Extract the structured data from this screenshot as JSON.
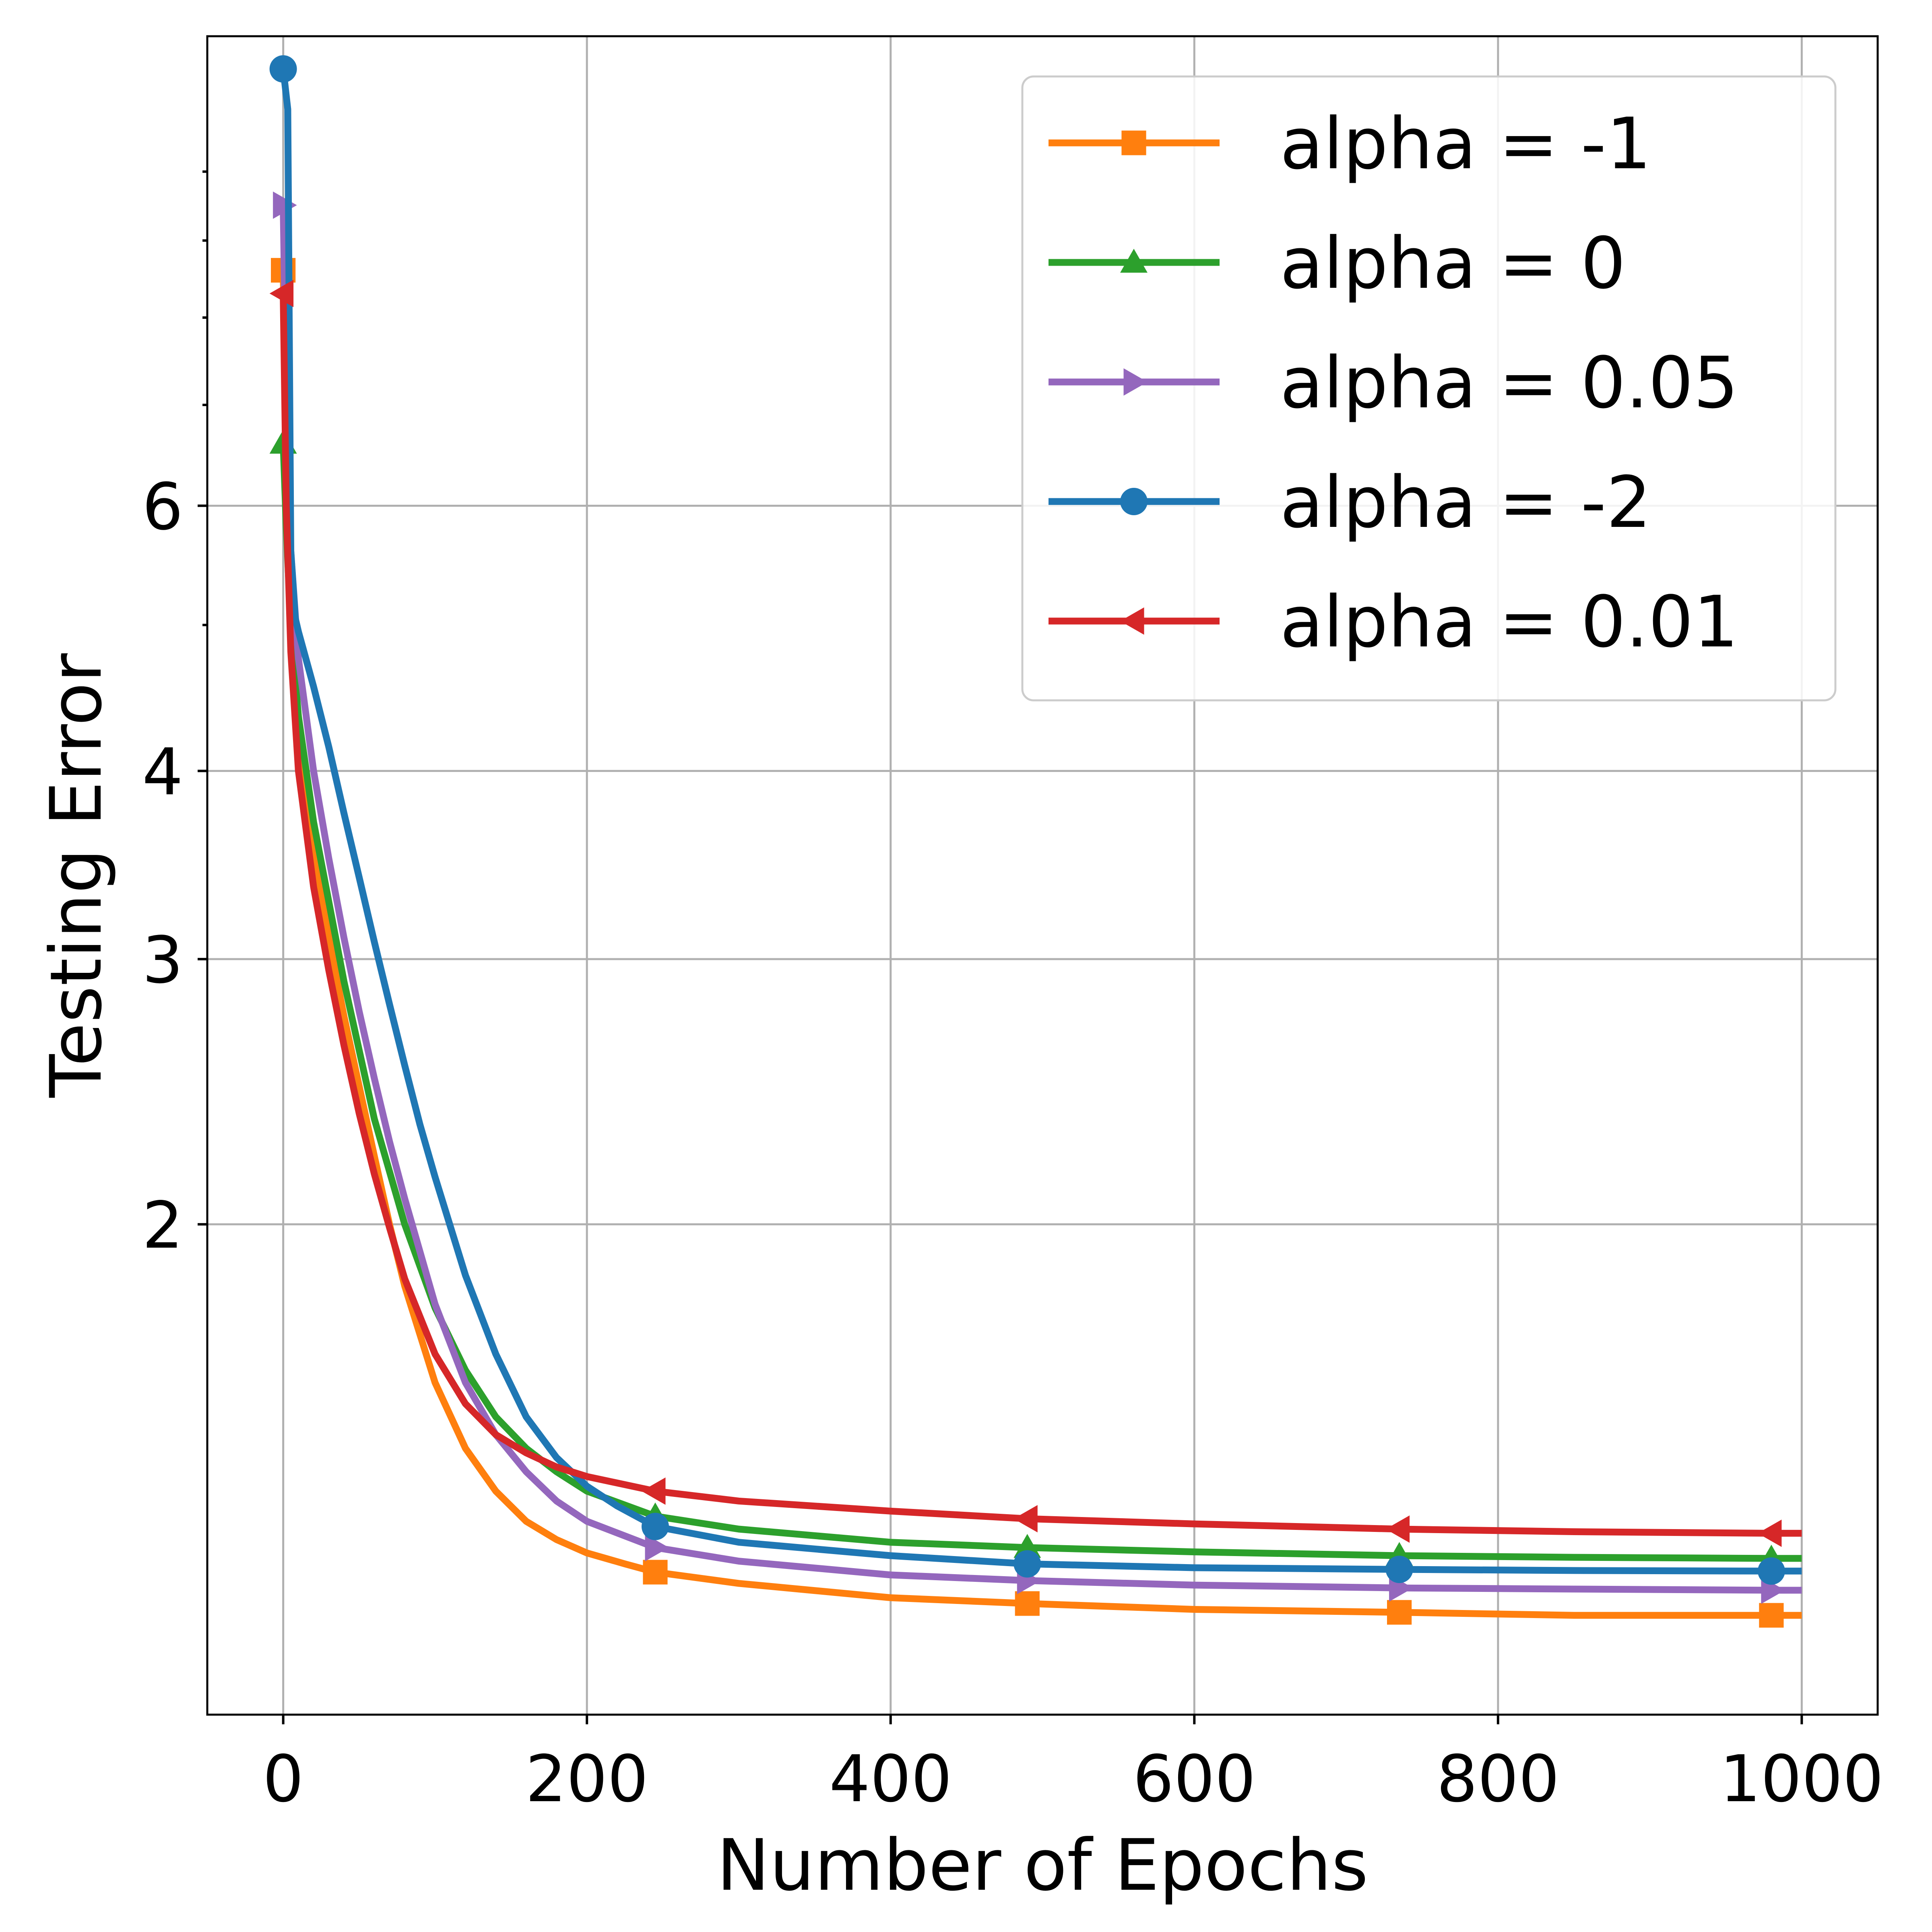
{
  "chart_data": {
    "type": "line",
    "title": "",
    "xlabel": "Number of Epochs",
    "ylabel": "Testing Error",
    "xlim": [
      -50,
      1050
    ],
    "ylim": [
      0.945,
      12.3
    ],
    "yscale": "log",
    "grid": true,
    "legend_position": "top-right",
    "xticks": [
      0,
      200,
      400,
      600,
      800,
      1000
    ],
    "xtick_labels": [
      "0",
      "200",
      "400",
      "600",
      "800",
      "1000"
    ],
    "yticks": [
      2,
      3,
      4,
      6
    ],
    "ytick_labels": [
      "2",
      "3",
      "4",
      "6"
    ],
    "yminor_ticks": [
      5,
      7,
      8,
      9,
      10
    ],
    "series": [
      {
        "name": "alpha = -1",
        "color": "#ff7f0e",
        "marker": "square",
        "x": [
          0,
          2,
          5,
          10,
          20,
          30,
          40,
          50,
          60,
          70,
          80,
          100,
          120,
          140,
          160,
          180,
          200,
          225,
          245,
          300,
          400,
          490,
          600,
          735,
          850,
          980,
          1000
        ],
        "y": [
          8.6,
          6.4,
          5.2,
          4.3,
          3.55,
          3.1,
          2.75,
          2.47,
          2.22,
          2.0,
          1.82,
          1.57,
          1.42,
          1.33,
          1.27,
          1.235,
          1.21,
          1.19,
          1.175,
          1.155,
          1.13,
          1.12,
          1.11,
          1.105,
          1.1,
          1.1,
          1.1
        ]
      },
      {
        "name": "alpha = 0",
        "color": "#2ca02c",
        "marker": "triangle-up",
        "x": [
          0,
          2,
          5,
          10,
          20,
          40,
          60,
          80,
          100,
          120,
          140,
          160,
          180,
          200,
          245,
          300,
          400,
          490,
          600,
          735,
          850,
          980,
          1000
        ],
        "y": [
          6.6,
          5.8,
          5.0,
          4.35,
          3.7,
          2.9,
          2.35,
          2.0,
          1.76,
          1.6,
          1.49,
          1.42,
          1.37,
          1.33,
          1.28,
          1.255,
          1.23,
          1.22,
          1.212,
          1.205,
          1.202,
          1.2,
          1.2
        ]
      },
      {
        "name": "alpha = 0.05",
        "color": "#9467bd",
        "marker": "triangle-right",
        "x": [
          0,
          2,
          5,
          10,
          20,
          30,
          40,
          50,
          60,
          70,
          80,
          100,
          120,
          140,
          160,
          180,
          200,
          245,
          300,
          400,
          490,
          600,
          735,
          850,
          980,
          1000
        ],
        "y": [
          9.5,
          7.0,
          5.6,
          4.75,
          4.0,
          3.5,
          3.1,
          2.77,
          2.5,
          2.27,
          2.08,
          1.77,
          1.57,
          1.45,
          1.37,
          1.31,
          1.27,
          1.22,
          1.195,
          1.17,
          1.16,
          1.152,
          1.147,
          1.145,
          1.143,
          1.143
        ]
      },
      {
        "name": "alpha = -2",
        "color": "#1f77b4",
        "marker": "circle",
        "x": [
          0,
          3,
          5,
          8,
          10,
          20,
          30,
          40,
          50,
          60,
          70,
          80,
          90,
          100,
          120,
          140,
          160,
          180,
          200,
          220,
          245,
          300,
          400,
          490,
          600,
          735,
          850,
          980,
          1000
        ],
        "y": [
          11.7,
          11.0,
          5.6,
          5.05,
          4.95,
          4.55,
          4.15,
          3.75,
          3.4,
          3.08,
          2.8,
          2.55,
          2.33,
          2.15,
          1.85,
          1.64,
          1.49,
          1.4,
          1.34,
          1.3,
          1.26,
          1.23,
          1.205,
          1.19,
          1.183,
          1.18,
          1.178,
          1.177,
          1.177
        ]
      },
      {
        "name": "alpha = 0.01",
        "color": "#d62728",
        "marker": "triangle-left",
        "x": [
          0,
          2,
          5,
          10,
          20,
          30,
          40,
          50,
          60,
          70,
          80,
          100,
          120,
          140,
          160,
          180,
          200,
          245,
          300,
          400,
          490,
          600,
          735,
          850,
          980,
          1000
        ],
        "y": [
          8.3,
          6.0,
          4.8,
          4.0,
          3.35,
          2.95,
          2.63,
          2.37,
          2.16,
          1.99,
          1.84,
          1.64,
          1.52,
          1.45,
          1.41,
          1.38,
          1.36,
          1.33,
          1.31,
          1.29,
          1.275,
          1.265,
          1.255,
          1.25,
          1.247,
          1.247
        ]
      }
    ],
    "marker_x": [
      0,
      245,
      490,
      735,
      980
    ]
  }
}
